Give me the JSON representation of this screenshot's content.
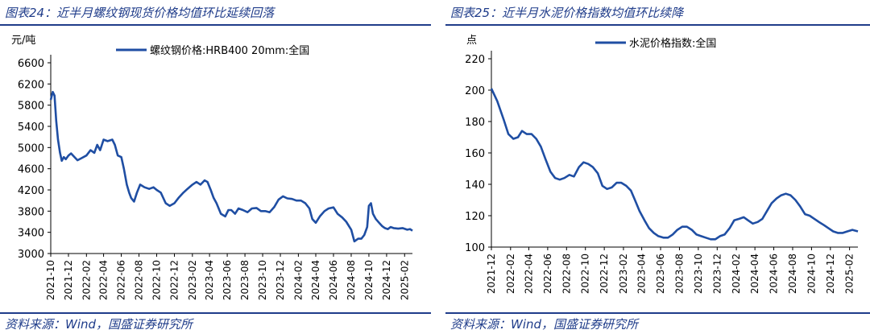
{
  "left": {
    "title": "图表24：近半月螺纹钢现货价格均值环比延续回落",
    "source": "资料来源：Wind，国盛证券研究所"
  },
  "right": {
    "title": "图表25：近半月水泥价格指数均值环比续降",
    "source": "资料来源：Wind，国盛证券研究所"
  },
  "chart_data": [
    {
      "type": "line",
      "ylabel": "元/吨",
      "ylim": [
        3000,
        6600
      ],
      "yticks": [
        3000,
        3400,
        3800,
        4200,
        4600,
        5000,
        5400,
        5800,
        6200,
        6600
      ],
      "xlabels": [
        "2021-10",
        "2021-12",
        "2022-02",
        "2022-04",
        "2022-06",
        "2022-08",
        "2022-10",
        "2022-12",
        "2023-02",
        "2023-04",
        "2023-06",
        "2023-08",
        "2023-10",
        "2023-12",
        "2024-02",
        "2024-04",
        "2024-06",
        "2024-08",
        "2024-10",
        "2024-12",
        "2025-02"
      ],
      "xdomain": [
        "2021-10-01",
        "2025-02-28"
      ],
      "legend_position": "top",
      "grid": false,
      "series": [
        {
          "name": "螺纹钢价格:HRB400 20mm:全国",
          "color": "#1f4ea3",
          "points": [
            [
              "2021-10-01",
              5900
            ],
            [
              "2021-10-08",
              6050
            ],
            [
              "2021-10-14",
              5980
            ],
            [
              "2021-10-20",
              5500
            ],
            [
              "2021-10-26",
              5150
            ],
            [
              "2021-11-02",
              4900
            ],
            [
              "2021-11-08",
              4750
            ],
            [
              "2021-11-15",
              4820
            ],
            [
              "2021-11-22",
              4780
            ],
            [
              "2021-12-01",
              4850
            ],
            [
              "2021-12-10",
              4890
            ],
            [
              "2021-12-20",
              4830
            ],
            [
              "2022-01-01",
              4760
            ],
            [
              "2022-01-15",
              4800
            ],
            [
              "2022-02-01",
              4850
            ],
            [
              "2022-02-15",
              4950
            ],
            [
              "2022-02-28",
              4900
            ],
            [
              "2022-03-10",
              5050
            ],
            [
              "2022-03-20",
              4950
            ],
            [
              "2022-04-01",
              5150
            ],
            [
              "2022-04-15",
              5120
            ],
            [
              "2022-05-01",
              5150
            ],
            [
              "2022-05-10",
              5050
            ],
            [
              "2022-05-20",
              4850
            ],
            [
              "2022-06-01",
              4820
            ],
            [
              "2022-06-10",
              4600
            ],
            [
              "2022-06-20",
              4300
            ],
            [
              "2022-06-28",
              4150
            ],
            [
              "2022-07-05",
              4050
            ],
            [
              "2022-07-15",
              3980
            ],
            [
              "2022-07-25",
              4150
            ],
            [
              "2022-08-05",
              4300
            ],
            [
              "2022-08-20",
              4250
            ],
            [
              "2022-09-05",
              4220
            ],
            [
              "2022-09-20",
              4250
            ],
            [
              "2022-10-01",
              4200
            ],
            [
              "2022-10-15",
              4150
            ],
            [
              "2022-11-01",
              3950
            ],
            [
              "2022-11-15",
              3900
            ],
            [
              "2022-12-01",
              3950
            ],
            [
              "2022-12-15",
              4050
            ],
            [
              "2023-01-01",
              4150
            ],
            [
              "2023-01-15",
              4220
            ],
            [
              "2023-02-01",
              4300
            ],
            [
              "2023-02-15",
              4350
            ],
            [
              "2023-03-01",
              4300
            ],
            [
              "2023-03-15",
              4380
            ],
            [
              "2023-03-25",
              4350
            ],
            [
              "2023-04-05",
              4200
            ],
            [
              "2023-04-15",
              4050
            ],
            [
              "2023-04-25",
              3950
            ],
            [
              "2023-05-10",
              3750
            ],
            [
              "2023-05-25",
              3700
            ],
            [
              "2023-06-05",
              3820
            ],
            [
              "2023-06-15",
              3820
            ],
            [
              "2023-06-28",
              3750
            ],
            [
              "2023-07-10",
              3850
            ],
            [
              "2023-07-25",
              3820
            ],
            [
              "2023-08-10",
              3780
            ],
            [
              "2023-08-25",
              3850
            ],
            [
              "2023-09-10",
              3860
            ],
            [
              "2023-09-25",
              3800
            ],
            [
              "2023-10-10",
              3800
            ],
            [
              "2023-10-25",
              3780
            ],
            [
              "2023-11-10",
              3880
            ],
            [
              "2023-11-25",
              4020
            ],
            [
              "2023-12-10",
              4080
            ],
            [
              "2023-12-25",
              4040
            ],
            [
              "2024-01-10",
              4030
            ],
            [
              "2024-01-25",
              4000
            ],
            [
              "2024-02-10",
              4000
            ],
            [
              "2024-02-25",
              3950
            ],
            [
              "2024-03-10",
              3850
            ],
            [
              "2024-03-20",
              3650
            ],
            [
              "2024-04-01",
              3580
            ],
            [
              "2024-04-15",
              3700
            ],
            [
              "2024-05-01",
              3800
            ],
            [
              "2024-05-15",
              3850
            ],
            [
              "2024-06-01",
              3870
            ],
            [
              "2024-06-15",
              3750
            ],
            [
              "2024-07-01",
              3680
            ],
            [
              "2024-07-15",
              3600
            ],
            [
              "2024-08-01",
              3450
            ],
            [
              "2024-08-12",
              3230
            ],
            [
              "2024-08-25",
              3280
            ],
            [
              "2024-09-05",
              3280
            ],
            [
              "2024-09-15",
              3350
            ],
            [
              "2024-09-25",
              3500
            ],
            [
              "2024-10-01",
              3900
            ],
            [
              "2024-10-08",
              3950
            ],
            [
              "2024-10-15",
              3750
            ],
            [
              "2024-10-25",
              3650
            ],
            [
              "2024-11-05",
              3580
            ],
            [
              "2024-11-15",
              3520
            ],
            [
              "2024-11-25",
              3480
            ],
            [
              "2024-12-05",
              3460
            ],
            [
              "2024-12-15",
              3500
            ],
            [
              "2024-12-25",
              3480
            ],
            [
              "2025-01-10",
              3470
            ],
            [
              "2025-01-25",
              3480
            ],
            [
              "2025-02-10",
              3450
            ],
            [
              "2025-02-20",
              3460
            ],
            [
              "2025-02-28",
              3430
            ]
          ]
        }
      ]
    },
    {
      "type": "line",
      "ylabel": "点",
      "ylim": [
        100,
        220
      ],
      "yticks": [
        100,
        120,
        140,
        160,
        180,
        200,
        220
      ],
      "xlabels": [
        "2021-12",
        "2022-02",
        "2022-04",
        "2022-06",
        "2022-08",
        "2022-10",
        "2022-12",
        "2023-02",
        "2023-04",
        "2023-06",
        "2023-08",
        "2023-10",
        "2023-12",
        "2024-02",
        "2024-04",
        "2024-06",
        "2024-08",
        "2024-10",
        "2024-12",
        "2025-02"
      ],
      "xdomain": [
        "2021-12-01",
        "2025-02-28"
      ],
      "legend_position": "top",
      "grid": false,
      "series": [
        {
          "name": "水泥价格指数:全国",
          "color": "#1f4ea3",
          "points": [
            [
              "2021-12-01",
              201
            ],
            [
              "2021-12-20",
              193
            ],
            [
              "2022-01-10",
              181
            ],
            [
              "2022-01-25",
              172
            ],
            [
              "2022-02-10",
              169
            ],
            [
              "2022-02-25",
              170
            ],
            [
              "2022-03-10",
              174
            ],
            [
              "2022-03-25",
              172
            ],
            [
              "2022-04-10",
              172
            ],
            [
              "2022-04-25",
              169
            ],
            [
              "2022-05-10",
              164
            ],
            [
              "2022-05-25",
              156
            ],
            [
              "2022-06-10",
              148
            ],
            [
              "2022-06-25",
              144
            ],
            [
              "2022-07-10",
              143
            ],
            [
              "2022-07-25",
              144
            ],
            [
              "2022-08-10",
              146
            ],
            [
              "2022-08-25",
              145
            ],
            [
              "2022-09-10",
              151
            ],
            [
              "2022-09-25",
              154
            ],
            [
              "2022-10-10",
              153
            ],
            [
              "2022-10-25",
              151
            ],
            [
              "2022-11-10",
              147
            ],
            [
              "2022-11-25",
              139
            ],
            [
              "2022-12-10",
              137
            ],
            [
              "2022-12-25",
              138
            ],
            [
              "2023-01-10",
              141
            ],
            [
              "2023-01-25",
              141
            ],
            [
              "2023-02-10",
              139
            ],
            [
              "2023-02-25",
              136
            ],
            [
              "2023-03-10",
              130
            ],
            [
              "2023-03-25",
              123
            ],
            [
              "2023-04-10",
              117
            ],
            [
              "2023-04-25",
              112
            ],
            [
              "2023-05-10",
              109
            ],
            [
              "2023-05-25",
              107
            ],
            [
              "2023-06-10",
              106
            ],
            [
              "2023-06-25",
              106
            ],
            [
              "2023-07-10",
              108
            ],
            [
              "2023-07-25",
              111
            ],
            [
              "2023-08-10",
              113
            ],
            [
              "2023-08-25",
              113
            ],
            [
              "2023-09-10",
              111
            ],
            [
              "2023-09-25",
              108
            ],
            [
              "2023-10-10",
              107
            ],
            [
              "2023-10-25",
              106
            ],
            [
              "2023-11-10",
              105
            ],
            [
              "2023-11-25",
              105
            ],
            [
              "2023-12-10",
              107
            ],
            [
              "2023-12-25",
              108
            ],
            [
              "2024-01-10",
              112
            ],
            [
              "2024-01-25",
              117
            ],
            [
              "2024-02-10",
              118
            ],
            [
              "2024-02-25",
              119
            ],
            [
              "2024-03-10",
              117
            ],
            [
              "2024-03-25",
              115
            ],
            [
              "2024-04-10",
              116
            ],
            [
              "2024-04-25",
              118
            ],
            [
              "2024-05-10",
              123
            ],
            [
              "2024-05-25",
              128
            ],
            [
              "2024-06-10",
              131
            ],
            [
              "2024-06-25",
              133
            ],
            [
              "2024-07-10",
              134
            ],
            [
              "2024-07-25",
              133
            ],
            [
              "2024-08-10",
              130
            ],
            [
              "2024-08-25",
              126
            ],
            [
              "2024-09-10",
              121
            ],
            [
              "2024-09-25",
              120
            ],
            [
              "2024-10-10",
              118
            ],
            [
              "2024-10-25",
              116
            ],
            [
              "2024-11-10",
              114
            ],
            [
              "2024-11-25",
              112
            ],
            [
              "2024-12-10",
              110
            ],
            [
              "2024-12-25",
              109
            ],
            [
              "2025-01-10",
              109
            ],
            [
              "2025-01-25",
              110
            ],
            [
              "2025-02-10",
              111
            ],
            [
              "2025-02-28",
              110
            ]
          ]
        }
      ]
    }
  ]
}
